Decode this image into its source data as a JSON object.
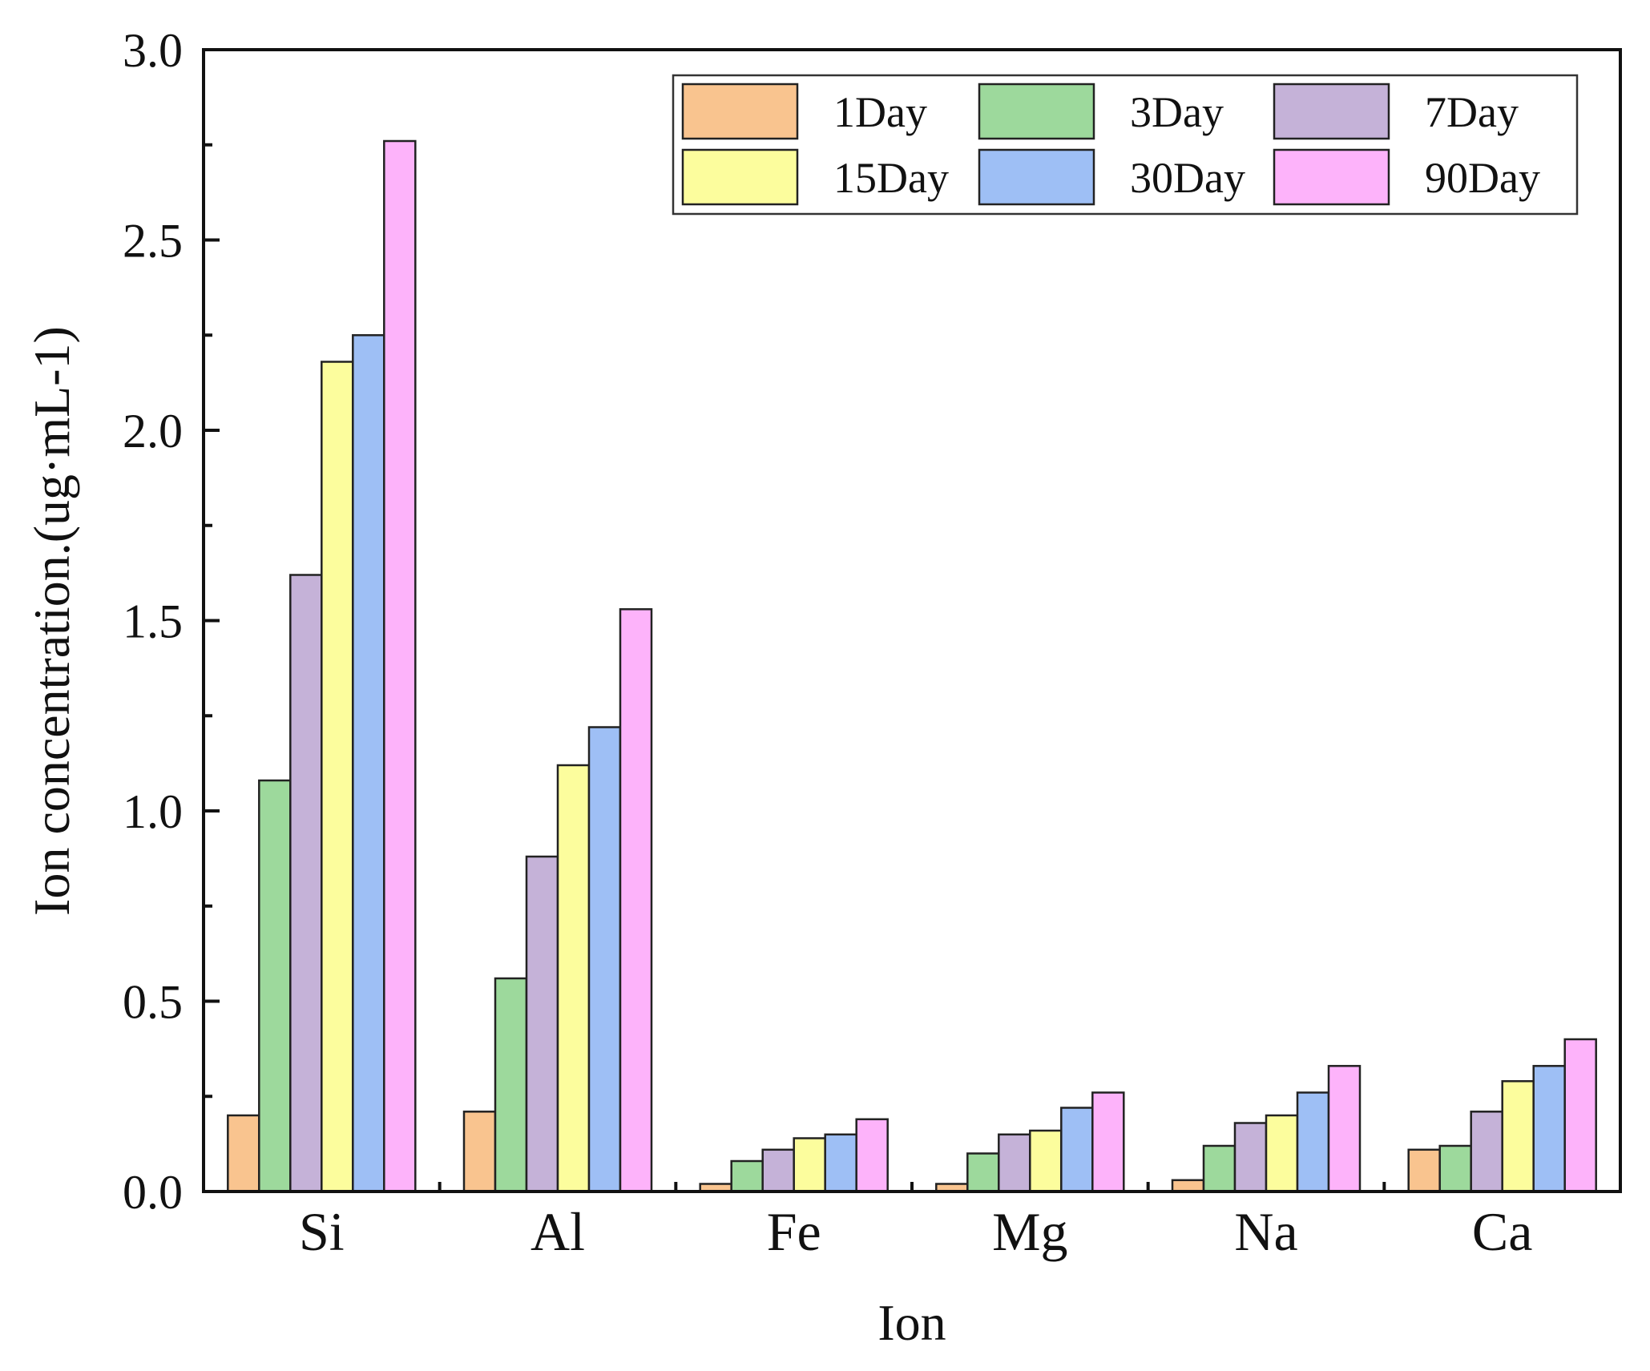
{
  "chart_data": {
    "type": "bar",
    "title": "",
    "xlabel": "Ion",
    "ylabel": "Ion concentration.(ug·mL-1)",
    "ylim": [
      0,
      3.0
    ],
    "yticks": [
      "0.0",
      "0.5",
      "1.0",
      "1.5",
      "2.0",
      "2.5",
      "3.0"
    ],
    "categories": [
      "Si",
      "Al",
      "Fe",
      "Mg",
      "Na",
      "Ca"
    ],
    "series": [
      {
        "name": "1Day",
        "color": "#F9C48F",
        "values": [
          0.2,
          0.21,
          0.02,
          0.02,
          0.03,
          0.11
        ]
      },
      {
        "name": "3Day",
        "color": "#9DD99C",
        "values": [
          1.08,
          0.56,
          0.08,
          0.1,
          0.12,
          0.12
        ]
      },
      {
        "name": "7Day",
        "color": "#C5B2D8",
        "values": [
          1.62,
          0.88,
          0.11,
          0.15,
          0.18,
          0.21
        ]
      },
      {
        "name": "15Day",
        "color": "#FCFD9D",
        "values": [
          2.18,
          1.12,
          0.14,
          0.16,
          0.2,
          0.29
        ]
      },
      {
        "name": "30Day",
        "color": "#9EBFF5",
        "values": [
          2.25,
          1.22,
          0.15,
          0.22,
          0.26,
          0.33
        ]
      },
      {
        "name": "90Day",
        "color": "#FDB3FA",
        "values": [
          2.76,
          1.53,
          0.19,
          0.26,
          0.33,
          0.4
        ]
      }
    ],
    "legend": {
      "position": "top-right",
      "columns": 3
    },
    "grid": false
  }
}
